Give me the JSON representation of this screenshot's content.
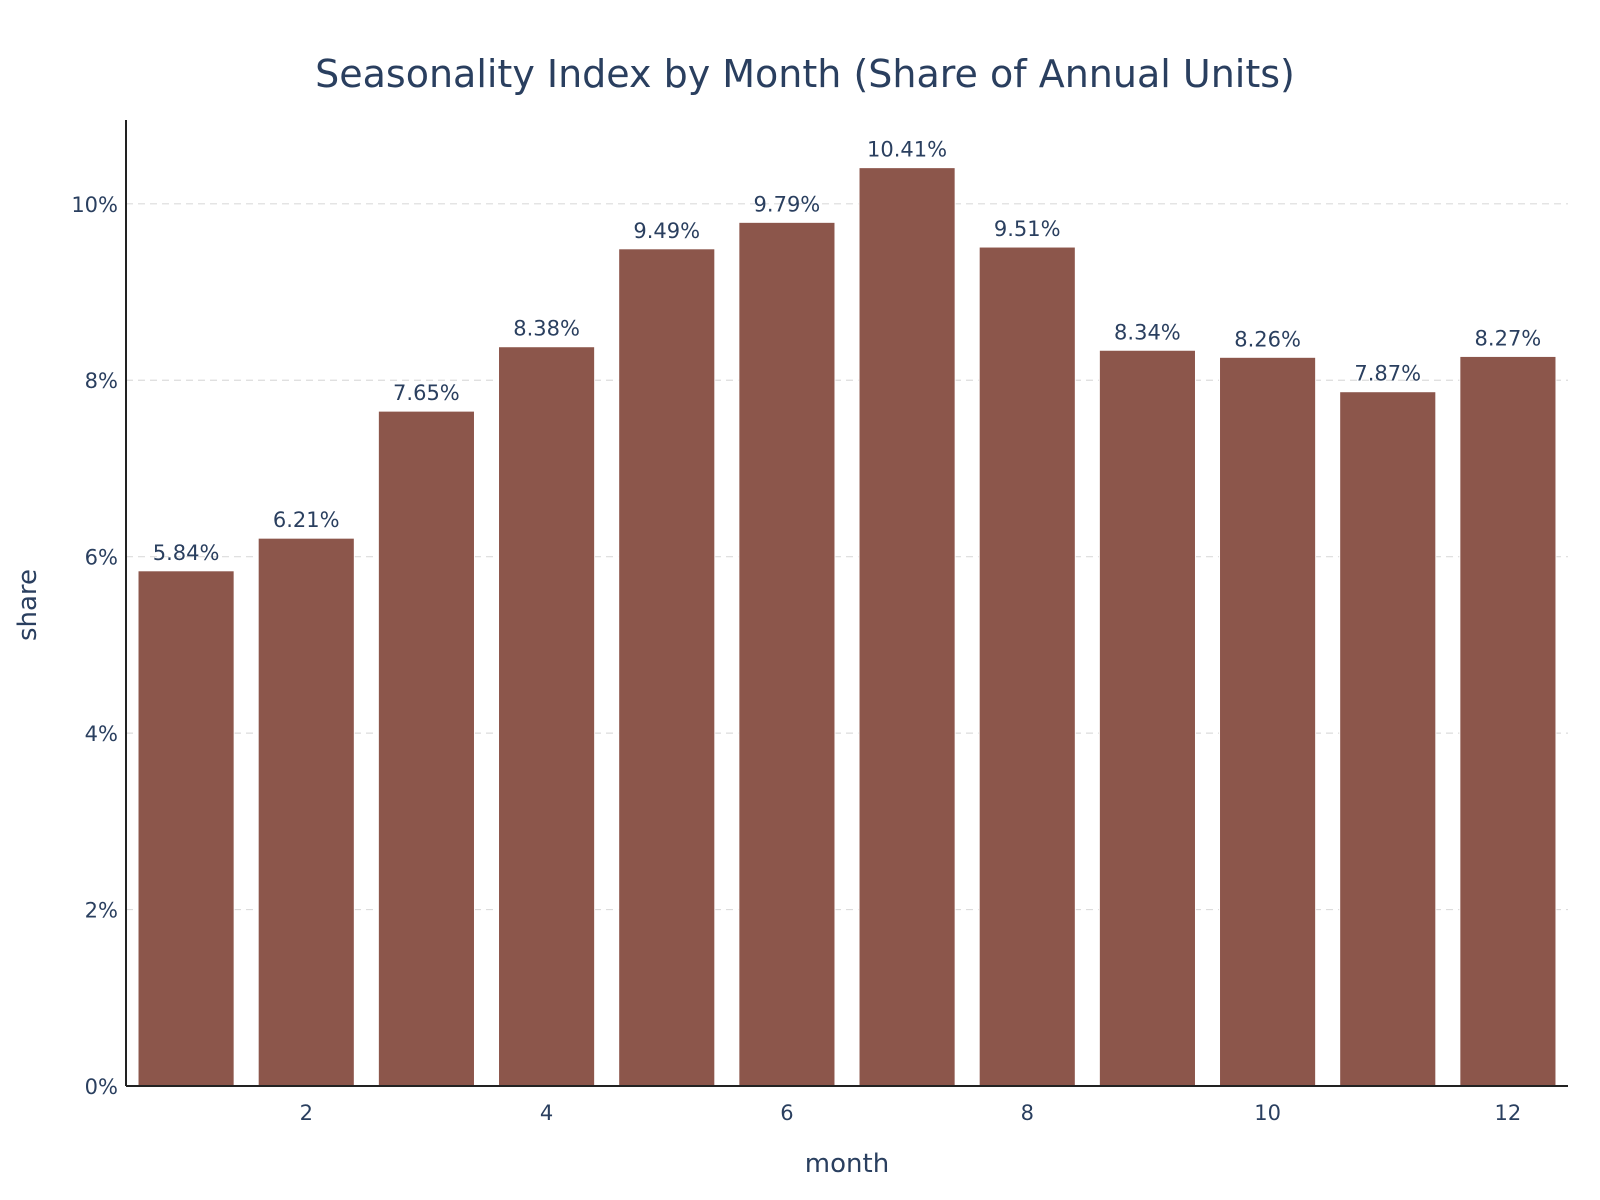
{
  "chart_data": {
    "type": "bar",
    "title": "Seasonality Index by Month (Share of Annual Units)",
    "xlabel": "month",
    "ylabel": "share",
    "x": [
      1,
      2,
      3,
      4,
      5,
      6,
      7,
      8,
      9,
      10,
      11,
      12
    ],
    "values": [
      5.84,
      6.21,
      7.65,
      8.38,
      9.49,
      9.79,
      10.41,
      9.51,
      8.34,
      8.26,
      7.87,
      8.27
    ],
    "value_labels": [
      "5.84%",
      "6.21%",
      "7.65%",
      "8.38%",
      "9.49%",
      "9.79%",
      "10.41%",
      "9.51%",
      "8.34%",
      "8.26%",
      "7.87%",
      "8.27%"
    ],
    "xticks": [
      2,
      4,
      6,
      8,
      10,
      12
    ],
    "xtick_labels": [
      "2",
      "4",
      "6",
      "8",
      "10",
      "12"
    ],
    "yticks": [
      0,
      2,
      4,
      6,
      8,
      10
    ],
    "ytick_labels": [
      "0%",
      "2%",
      "4%",
      "6%",
      "8%",
      "10%"
    ],
    "ylim": [
      0,
      10.95
    ],
    "xlim": [
      0.5,
      12.5
    ],
    "grid": "y-dashed",
    "legend": "none",
    "colors": {
      "bar": "#8c564b",
      "text": "#2a3f5f",
      "grid": "#dcdcdc",
      "axis": "#222222"
    }
  }
}
